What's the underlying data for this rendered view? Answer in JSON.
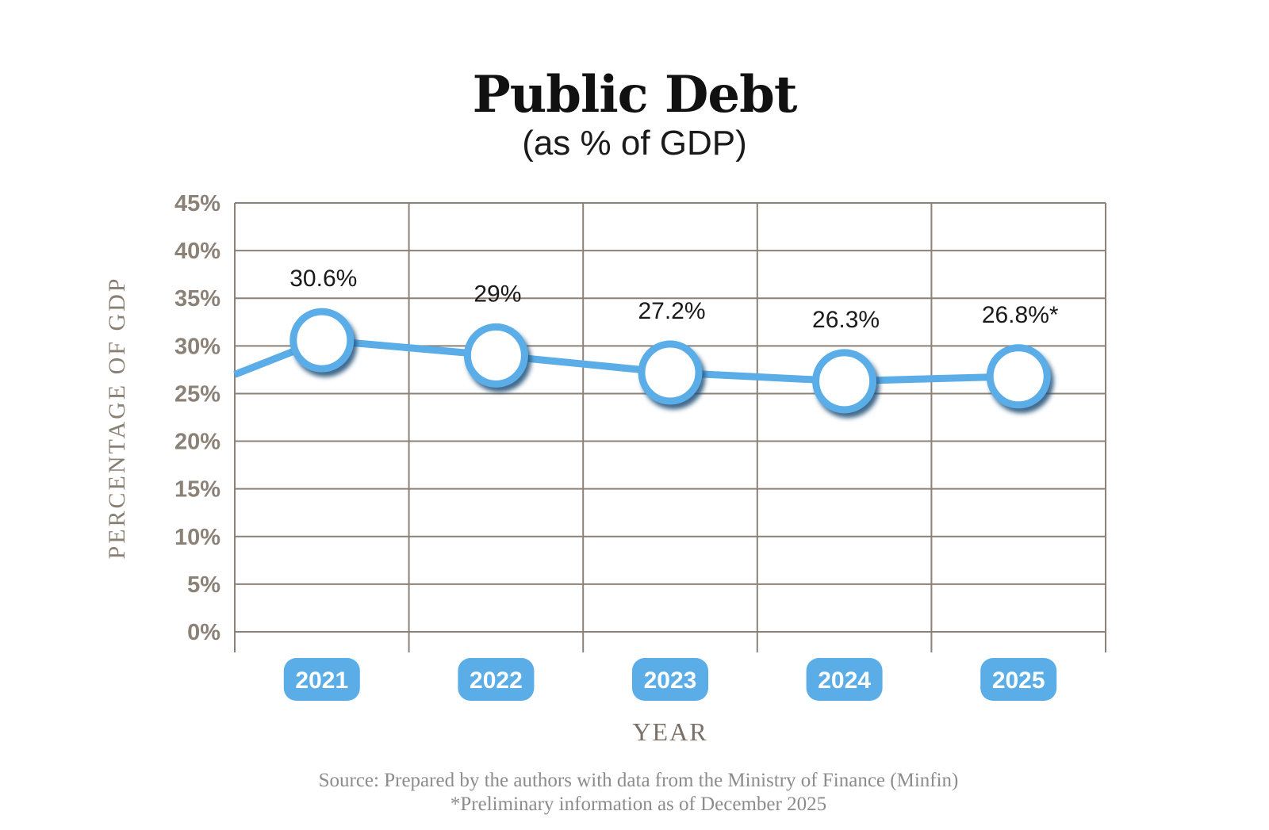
{
  "chart_data": {
    "type": "line",
    "title": "Public Debt",
    "subtitle": "(as % of GDP)",
    "xlabel": "YEAR",
    "ylabel": "PERCENTAGE OF GDP",
    "categories": [
      "2021",
      "2022",
      "2023",
      "2024",
      "2025"
    ],
    "values": [
      30.6,
      29,
      27.2,
      26.3,
      26.8
    ],
    "data_labels": [
      "30.6%",
      "29%",
      "27.2%",
      "26.3%",
      "26.8%*"
    ],
    "line_start_value": 27.0,
    "ylim": [
      0,
      45
    ],
    "yticks": [
      0,
      5,
      10,
      15,
      20,
      25,
      30,
      35,
      40,
      45
    ],
    "ytick_labels": [
      "0%",
      "5%",
      "10%",
      "15%",
      "20%",
      "25%",
      "30%",
      "35%",
      "40%",
      "45%"
    ],
    "grid": true,
    "line_color": "#5aade6",
    "marker_ring_color": "#5aade6",
    "grid_color": "#8c8177"
  },
  "footer": {
    "source": "Source: Prepared by the authors with data from the Ministry of Finance (Minfin)",
    "note": "*Preliminary information as of December 2025"
  }
}
